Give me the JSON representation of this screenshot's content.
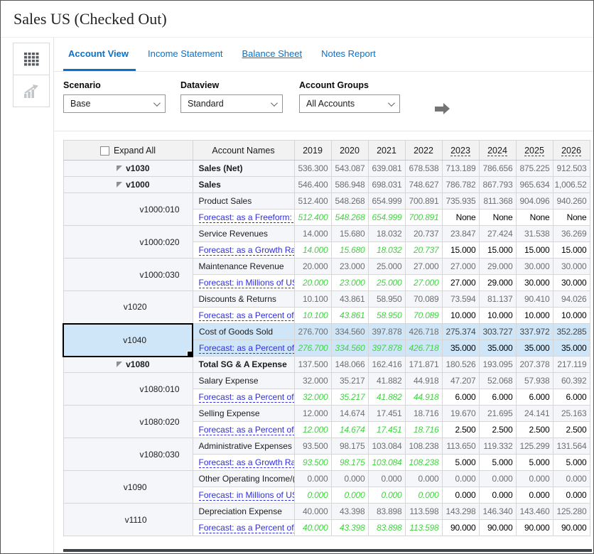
{
  "window": {
    "title": "Sales US (Checked Out)"
  },
  "colors": {
    "accent": "#0572ce",
    "link": "#2e2ed8",
    "green": "#3fd43f",
    "grayval": "#6e6e6e",
    "selrow": "#cfe6f8",
    "selcell": "#b5daf4",
    "red": "#e0312e"
  },
  "sidebar": {
    "buttons": [
      {
        "id": "grid-view",
        "icon": "grid-view-icon",
        "active": true
      },
      {
        "id": "chart-view",
        "icon": "chart-view-icon",
        "disabled": true
      }
    ]
  },
  "tabs": {
    "items": [
      {
        "label": "Account View",
        "active": true
      },
      {
        "label": "Income Statement",
        "active": false
      },
      {
        "label": "Balance Sheet",
        "active": false,
        "underlined": true
      },
      {
        "label": "Notes Report",
        "active": false
      }
    ]
  },
  "filters": {
    "scenario": {
      "label": "Scenario",
      "value": "Base"
    },
    "dataview": {
      "label": "Dataview",
      "value": "Standard"
    },
    "account_groups": {
      "label": "Account Groups",
      "value": "All Accounts"
    },
    "apply_icon": "arrow-right-icon"
  },
  "grid": {
    "expand_all_label": "Expand All",
    "account_names_header": "Account Names",
    "years": [
      {
        "label": "2019",
        "is_link": false
      },
      {
        "label": "2020",
        "is_link": false
      },
      {
        "label": "2021",
        "is_link": false
      },
      {
        "label": "2022",
        "is_link": false
      },
      {
        "label": "2023",
        "is_link": true
      },
      {
        "label": "2024",
        "is_link": true
      },
      {
        "label": "2025",
        "is_link": true
      },
      {
        "label": "2026",
        "is_link": true
      }
    ],
    "rows": [
      {
        "code": "v1030",
        "level": 1,
        "expandable": true,
        "bold": true,
        "name": "Sales (Net)",
        "values": [
          "536.300",
          "543.087",
          "639.081",
          "678.538",
          "713.189",
          "786.656",
          "875.225",
          "912.503"
        ]
      },
      {
        "code": "v1000",
        "level": 2,
        "expandable": true,
        "bold": true,
        "name": "Sales",
        "values": [
          "546.400",
          "586.948",
          "698.031",
          "748.627",
          "786.782",
          "867.793",
          "965.634",
          "1,006.52"
        ]
      },
      {
        "code": "v1000:010",
        "level": 3,
        "name": "Product Sales",
        "values": [
          "512.400",
          "548.268",
          "654.999",
          "700.891",
          "735.935",
          "811.368",
          "904.096",
          "940.260"
        ],
        "forecast": {
          "label": "Forecast: as a Freeform: U",
          "values": [
            "512.400",
            "548.268",
            "654.999",
            "700.891",
            "None",
            "None",
            "None",
            "None"
          ]
        }
      },
      {
        "code": "v1000:020",
        "level": 3,
        "name": "Service Revenues",
        "values": [
          "14.000",
          "15.680",
          "18.032",
          "20.737",
          "23.847",
          "27.424",
          "31.538",
          "36.269"
        ],
        "forecast": {
          "label": "Forecast: as a Growth Rat",
          "values": [
            "14.000",
            "15.680",
            "18.032",
            "20.737",
            "15.000",
            "15.000",
            "15.000",
            "15.000"
          ]
        }
      },
      {
        "code": "v1000:030",
        "level": 3,
        "name": "Maintenance Revenue",
        "values": [
          "20.000",
          "23.000",
          "25.000",
          "27.000",
          "27.000",
          "29.000",
          "30.000",
          "30.000"
        ],
        "forecast": {
          "label": "Forecast: in Millions of US",
          "values": [
            "20.000",
            "23.000",
            "25.000",
            "27.000",
            "27.000",
            "29.000",
            "30.000",
            "30.000"
          ]
        }
      },
      {
        "code": "v1020",
        "level": 2,
        "name": "Discounts & Returns",
        "values": [
          "10.100",
          "43.861",
          "58.950",
          "70.089",
          "73.594",
          "81.137",
          "90.410",
          "94.026"
        ],
        "forecast": {
          "label": "Forecast: as a Percent of F",
          "values": [
            "10.100",
            "43.861",
            "58.950",
            "70.089",
            "10.000",
            "10.000",
            "10.000",
            "10.000"
          ]
        }
      },
      {
        "code": "v1040",
        "level": 2,
        "name": "Cost of Goods Sold",
        "selected": true,
        "red_box_years": [
          "2023",
          "2024",
          "2025",
          "2026"
        ],
        "values": [
          "276.700",
          "334.560",
          "397.878",
          "426.718",
          "275.374",
          "303.727",
          "337.972",
          "352.285"
        ],
        "forecast": {
          "label": "Forecast: as a Percent of S",
          "values": [
            "276.700",
            "334.560",
            "397.878",
            "426.718",
            "35.000",
            "35.000",
            "35.000",
            "35.000"
          ]
        }
      },
      {
        "code": "v1080",
        "level": 2,
        "expandable": true,
        "bold": true,
        "name": "Total SG & A Expense",
        "values": [
          "137.500",
          "148.066",
          "162.416",
          "171.871",
          "180.526",
          "193.095",
          "207.378",
          "217.119"
        ]
      },
      {
        "code": "v1080:010",
        "level": 3,
        "name": "Salary Expense",
        "values": [
          "32.000",
          "35.217",
          "41.882",
          "44.918",
          "47.207",
          "52.068",
          "57.938",
          "60.392"
        ],
        "forecast": {
          "label": "Forecast: as a Percent of S",
          "values": [
            "32.000",
            "35.217",
            "41.882",
            "44.918",
            "6.000",
            "6.000",
            "6.000",
            "6.000"
          ]
        }
      },
      {
        "code": "v1080:020",
        "level": 3,
        "name": "Selling Expense",
        "values": [
          "12.000",
          "14.674",
          "17.451",
          "18.716",
          "19.670",
          "21.695",
          "24.141",
          "25.163"
        ],
        "forecast": {
          "label": "Forecast: as a Percent of S",
          "values": [
            "12.000",
            "14.674",
            "17.451",
            "18.716",
            "2.500",
            "2.500",
            "2.500",
            "2.500"
          ]
        }
      },
      {
        "code": "v1080:030",
        "level": 3,
        "name": "Administrative Expenses",
        "values": [
          "93.500",
          "98.175",
          "103.084",
          "108.238",
          "113.650",
          "119.332",
          "125.299",
          "131.564"
        ],
        "forecast": {
          "label": "Forecast: as a Growth Rat",
          "values": [
            "93.500",
            "98.175",
            "103.084",
            "108.238",
            "5.000",
            "5.000",
            "5.000",
            "5.000"
          ]
        }
      },
      {
        "code": "v1090",
        "level": 2,
        "name": "Other Operating Income/(E",
        "values": [
          "0.000",
          "0.000",
          "0.000",
          "0.000",
          "0.000",
          "0.000",
          "0.000",
          "0.000"
        ],
        "forecast": {
          "label": "Forecast: in Millions of US",
          "values": [
            "0.000",
            "0.000",
            "0.000",
            "0.000",
            "0.000",
            "0.000",
            "0.000",
            "0.000"
          ]
        }
      },
      {
        "code": "v1110",
        "level": 2,
        "name": "Depreciation Expense",
        "values": [
          "40.000",
          "43.398",
          "83.898",
          "113.598",
          "143.298",
          "146.340",
          "143.460",
          "125.280"
        ],
        "forecast": {
          "label": "Forecast: as a Percent of D",
          "values": [
            "40.000",
            "43.398",
            "83.898",
            "113.598",
            "90.000",
            "90.000",
            "90.000",
            "90.000"
          ]
        }
      }
    ]
  }
}
